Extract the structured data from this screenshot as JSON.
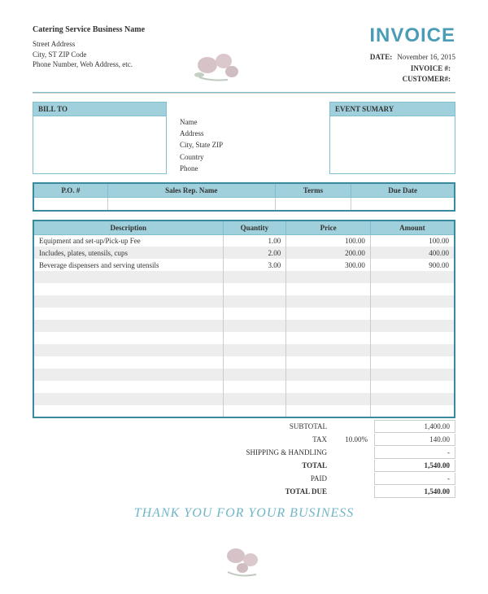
{
  "company": {
    "name": "Catering  Service Business Name",
    "street": "Street Address",
    "city_line": "City, ST  ZIP Code",
    "contact": "Phone Number, Web Address, etc."
  },
  "invoice": {
    "title": "INVOICE",
    "date_label": "DATE:",
    "date_value": "November 16, 2015",
    "number_label": "INVOICE #:",
    "number_value": "",
    "customer_label": "CUSTOMER#:",
    "customer_value": ""
  },
  "bill_to": {
    "header": "BILL TO",
    "name": "Name",
    "address": "Address",
    "city": "City, State ZIP",
    "country": "Country",
    "phone": "Phone"
  },
  "event": {
    "header": "EVENT SUMARY"
  },
  "po_headers": {
    "po": "P.O. #",
    "rep": "Sales Rep. Name",
    "terms": "Terms",
    "due": "Due Date"
  },
  "items_headers": {
    "desc": "Description",
    "qty": "Quantity",
    "price": "Price",
    "amount": "Amount"
  },
  "items": [
    {
      "desc": "Equipment and set-up/Pick-up  Fee",
      "qty": "1.00",
      "price": "100.00",
      "amount": "100.00"
    },
    {
      "desc": "Includes, plates, utensils, cups",
      "qty": "2.00",
      "price": "200.00",
      "amount": "400.00"
    },
    {
      "desc": "Beverage dispensers and serving utensils",
      "qty": "3.00",
      "price": "300.00",
      "amount": "900.00"
    }
  ],
  "blank_rows": 12,
  "totals": {
    "subtotal_label": "SUBTOTAL",
    "subtotal": "1,400.00",
    "tax_label": "TAX",
    "tax_rate": "10.00%",
    "tax": "140.00",
    "shipping_label": "SHIPPING & HANDLING",
    "shipping": "-",
    "total_label": "TOTAL",
    "total": "1,540.00",
    "paid_label": "PAID",
    "paid": "-",
    "due_label": "TOTAL DUE",
    "due": "1,540.00"
  },
  "footer": "THANK YOU FOR YOUR BUSINESS",
  "colors": {
    "accent": "#7fbfcf",
    "header_bg": "#a0d0dc",
    "title": "#4a9db5"
  }
}
